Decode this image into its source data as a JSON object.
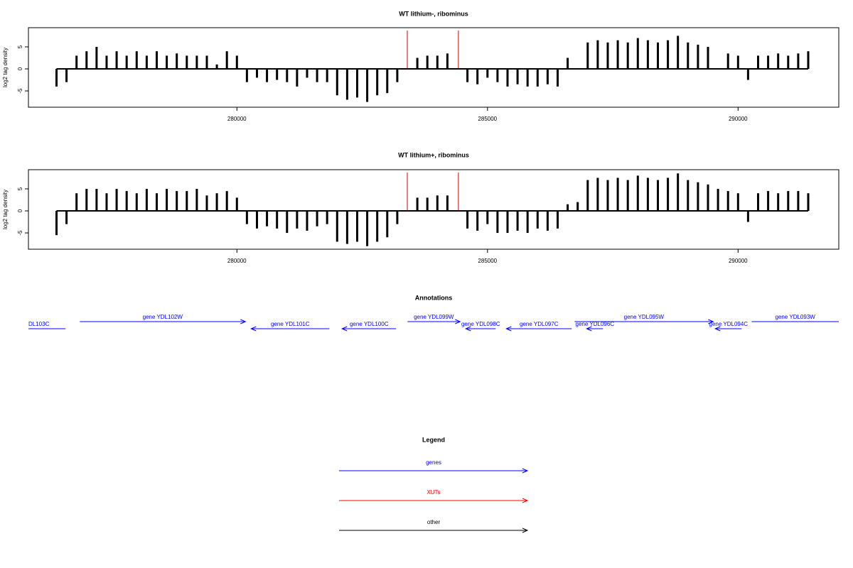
{
  "chart_data": [
    {
      "type": "bar",
      "title": "WT lithium-, ribominus",
      "ylabel": "log2 tag density",
      "color": "#000000",
      "x": [
        276400,
        276600,
        276800,
        277000,
        277200,
        277400,
        277600,
        277800,
        278000,
        278200,
        278400,
        278600,
        278800,
        279000,
        279200,
        279400,
        279600,
        279800,
        280000,
        280200,
        280400,
        280600,
        280800,
        281000,
        281200,
        281400,
        281600,
        281800,
        282000,
        282200,
        282400,
        282600,
        282800,
        283000,
        283200,
        283400,
        283600,
        283800,
        284000,
        284200,
        284400,
        284600,
        284800,
        285000,
        285200,
        285400,
        285600,
        285800,
        286000,
        286200,
        286400,
        286600,
        286800,
        287000,
        287200,
        287400,
        287600,
        287800,
        288000,
        288200,
        288400,
        288600,
        288800,
        289000,
        289200,
        289400,
        289600,
        289800,
        290000,
        290200,
        290400,
        290600,
        290800,
        291000,
        291200,
        291400
      ],
      "values": [
        -4,
        -3,
        3,
        4,
        5,
        3,
        4,
        3,
        4,
        3,
        4,
        3,
        3.5,
        3,
        3,
        3,
        1,
        4,
        3,
        -3,
        -2,
        -3,
        -2.5,
        -3,
        -4,
        -2,
        -3,
        -3,
        -6,
        -7,
        -6.5,
        -7.5,
        -6,
        -5.5,
        -3,
        0,
        2.5,
        3,
        3,
        3.5,
        0,
        -3,
        -3.5,
        -2,
        -3,
        -4,
        -3.5,
        -4,
        -4,
        -3.5,
        -4,
        2.5,
        0,
        6,
        6.5,
        6,
        6.5,
        6,
        7,
        6.5,
        6,
        6.5,
        7.5,
        6,
        5.5,
        5,
        0,
        3.5,
        3,
        -2.5,
        3,
        3,
        3.5,
        3,
        3.5,
        4
      ],
      "markers": {
        "color": "#cc0000",
        "x": [
          283400,
          284420
        ],
        "values": [
          8.7,
          8.7
        ]
      },
      "xlim": [
        275840,
        292010
      ],
      "ylim": [
        -8.7,
        9.35
      ],
      "xticks": [
        280000,
        285000,
        290000
      ],
      "yticks": [
        -5,
        0,
        5
      ]
    },
    {
      "type": "bar",
      "title": "WT lithium+, ribominus",
      "ylabel": "log2 tag density",
      "color": "#000000",
      "x": [
        276400,
        276600,
        276800,
        277000,
        277200,
        277400,
        277600,
        277800,
        278000,
        278200,
        278400,
        278600,
        278800,
        279000,
        279200,
        279400,
        279600,
        279800,
        280000,
        280200,
        280400,
        280600,
        280800,
        281000,
        281200,
        281400,
        281600,
        281800,
        282000,
        282200,
        282400,
        282600,
        282800,
        283000,
        283200,
        283400,
        283600,
        283800,
        284000,
        284200,
        284400,
        284600,
        284800,
        285000,
        285200,
        285400,
        285600,
        285800,
        286000,
        286200,
        286400,
        286600,
        286800,
        287000,
        287200,
        287400,
        287600,
        287800,
        288000,
        288200,
        288400,
        288600,
        288800,
        289000,
        289200,
        289400,
        289600,
        289800,
        290000,
        290200,
        290400,
        290600,
        290800,
        291000,
        291200,
        291400
      ],
      "values": [
        -5.5,
        -3,
        4,
        5,
        5,
        4,
        5,
        4.5,
        4,
        5,
        4,
        5,
        4.5,
        4.5,
        5,
        3.5,
        4,
        4.5,
        3,
        -3,
        -4,
        -3.5,
        -4,
        -5,
        -4,
        -4.5,
        -3.5,
        -3,
        -7,
        -7.5,
        -7,
        -8,
        -7,
        -6,
        -3,
        0,
        3,
        3,
        3.5,
        3.5,
        0,
        -4,
        -4.5,
        -3,
        -5,
        -5,
        -4.5,
        -5,
        -4,
        -4.5,
        -4,
        1.5,
        2,
        7,
        7.5,
        7,
        7.5,
        7,
        8,
        7.5,
        7,
        7.5,
        8.5,
        7,
        6.5,
        6,
        5,
        4.5,
        4,
        -2.5,
        4,
        4.5,
        4,
        4.5,
        4.5,
        4
      ],
      "markers": {
        "color": "#cc0000",
        "x": [
          283400,
          284420
        ],
        "values": [
          8.7,
          8.7
        ]
      },
      "xlim": [
        275840,
        292010
      ],
      "ylim": [
        -8.7,
        9.35
      ],
      "xticks": [
        280000,
        285000,
        290000
      ],
      "yticks": [
        -5,
        0,
        5
      ]
    }
  ],
  "annotations": {
    "title": "Annotations",
    "color": "#0000ff",
    "xlim": [
      275840,
      292010
    ],
    "genes": [
      {
        "label": "DL103C",
        "start": 275840,
        "end": 276580,
        "strand": "-"
      },
      {
        "label": "gene YDL102W",
        "start": 276865,
        "end": 280170,
        "strand": "+"
      },
      {
        "label": "gene YDL101C",
        "start": 280284,
        "end": 281844,
        "strand": "-"
      },
      {
        "label": "gene YDL100C",
        "start": 282099,
        "end": 283177,
        "strand": "-"
      },
      {
        "label": "gene YDL099W",
        "start": 283404,
        "end": 284454,
        "strand": "+"
      },
      {
        "label": "gene YDL098C",
        "start": 284567,
        "end": 285163,
        "strand": "-"
      },
      {
        "label": "gene YDL097C",
        "start": 285376,
        "end": 286681,
        "strand": "-"
      },
      {
        "label": "gene YDL096C",
        "start": 286979,
        "end": 287305,
        "strand": "-"
      },
      {
        "label": "gene YDL095W",
        "start": 286738,
        "end": 289504,
        "strand": "+"
      },
      {
        "label": "gene YDL094C",
        "start": 289546,
        "end": 290071,
        "strand": "-"
      },
      {
        "label": "gene YDL093W",
        "start": 290270,
        "end": 292010,
        "strand": "+"
      }
    ]
  },
  "legend": {
    "title": "Legend",
    "items": [
      {
        "name": "genes",
        "color": "#0000ff"
      },
      {
        "name": "XUTs",
        "color": "#ff0000"
      },
      {
        "name": "other",
        "color": "#000000"
      }
    ]
  }
}
